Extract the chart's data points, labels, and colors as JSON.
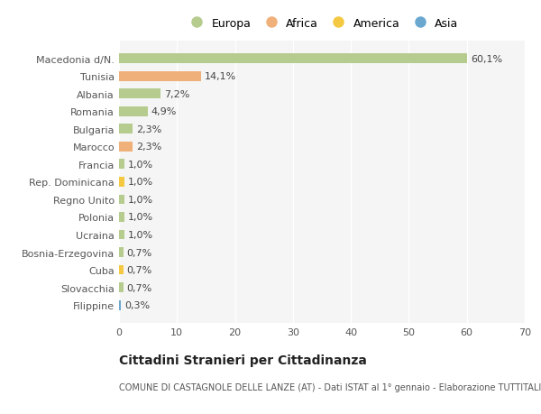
{
  "title": "Cittadini Stranieri per Cittadinanza",
  "subtitle": "COMUNE DI CASTAGNOLE DELLE LANZE (AT) - Dati ISTAT al 1° gennaio - Elaborazione TUTTITALIA.IT",
  "categories": [
    "Filippine",
    "Slovacchia",
    "Cuba",
    "Bosnia-Erzegovina",
    "Ucraina",
    "Polonia",
    "Regno Unito",
    "Rep. Dominicana",
    "Francia",
    "Marocco",
    "Bulgaria",
    "Romania",
    "Albania",
    "Tunisia",
    "Macedonia d/N."
  ],
  "values": [
    0.3,
    0.7,
    0.7,
    0.7,
    1.0,
    1.0,
    1.0,
    1.0,
    1.0,
    2.3,
    2.3,
    4.9,
    7.2,
    14.1,
    60.1
  ],
  "labels": [
    "0,3%",
    "0,7%",
    "0,7%",
    "0,7%",
    "1,0%",
    "1,0%",
    "1,0%",
    "1,0%",
    "1,0%",
    "2,3%",
    "2,3%",
    "4,9%",
    "7,2%",
    "14,1%",
    "60,1%"
  ],
  "continents": [
    "Asia",
    "Europa",
    "America",
    "Europa",
    "Europa",
    "Europa",
    "Europa",
    "America",
    "Europa",
    "Africa",
    "Europa",
    "Europa",
    "Europa",
    "Africa",
    "Europa"
  ],
  "continent_colors": {
    "Europa": "#b5cc8e",
    "Africa": "#f0b07a",
    "America": "#f5c842",
    "Asia": "#6aa8d0"
  },
  "legend_items": [
    "Europa",
    "Africa",
    "America",
    "Asia"
  ],
  "legend_colors": [
    "#b5cc8e",
    "#f0b07a",
    "#f5c842",
    "#6aa8d0"
  ],
  "xlim": [
    0,
    70
  ],
  "xticks": [
    0,
    10,
    20,
    30,
    40,
    50,
    60,
    70
  ],
  "background_color": "#ffffff",
  "plot_bg_color": "#f5f5f5",
  "grid_color": "#ffffff",
  "bar_height": 0.55,
  "label_fontsize": 8,
  "tick_fontsize": 8,
  "title_fontsize": 10,
  "subtitle_fontsize": 7
}
